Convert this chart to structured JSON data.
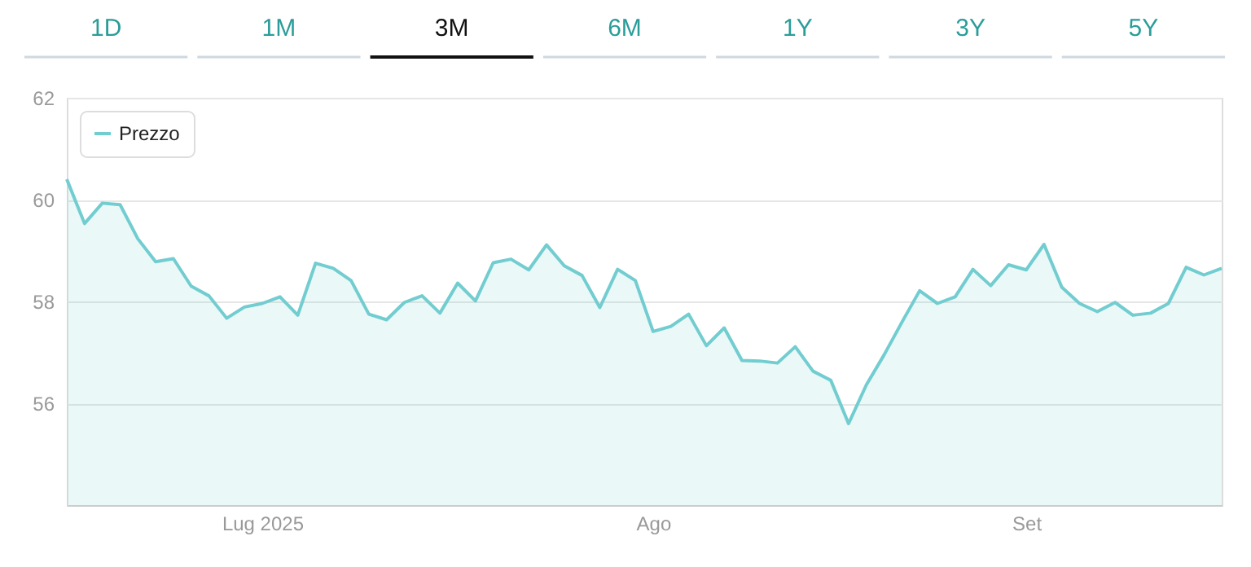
{
  "chart_data": {
    "type": "area",
    "annotations": [
      "1D",
      "1M",
      "3M",
      "6M",
      "1Y",
      "3Y",
      "5Y"
    ],
    "categories": [
      null,
      null,
      null,
      null,
      null,
      null,
      null,
      null,
      null,
      null,
      null,
      "Lug 2025",
      null,
      null,
      null,
      null,
      null,
      null,
      null,
      null,
      null,
      null,
      null,
      null,
      null,
      null,
      null,
      null,
      null,
      null,
      null,
      null,
      null,
      "Ago",
      null,
      null,
      null,
      null,
      null,
      null,
      null,
      null,
      null,
      null,
      null,
      null,
      null,
      null,
      null,
      null,
      null,
      null,
      null,
      null,
      "Set",
      null,
      null,
      null,
      null,
      null,
      null,
      null,
      null,
      null,
      null,
      null
    ],
    "series": [
      {
        "name": "Prezzo",
        "color": "#72cdd0",
        "values": [
          60.4,
          59.53,
          59.93,
          59.9,
          59.23,
          58.78,
          58.84,
          58.3,
          58.11,
          57.67,
          57.89,
          57.96,
          58.09,
          57.73,
          58.75,
          58.65,
          58.41,
          57.75,
          57.64,
          57.98,
          58.11,
          57.77,
          58.36,
          58.01,
          58.76,
          58.83,
          58.62,
          59.11,
          58.7,
          58.51,
          57.88,
          58.63,
          58.41,
          57.41,
          57.51,
          57.75,
          57.13,
          57.48,
          56.84,
          56.83,
          56.79,
          57.11,
          56.63,
          56.45,
          55.6,
          56.36,
          56.95,
          57.59,
          58.21,
          57.96,
          58.09,
          58.63,
          58.31,
          58.72,
          58.62,
          59.12,
          58.28,
          57.96,
          57.8,
          57.98,
          57.73,
          57.77,
          57.96,
          58.67,
          58.52,
          58.65
        ]
      }
    ],
    "ylim": [
      54,
      62
    ],
    "yticks": [
      56,
      58,
      60,
      62
    ],
    "grid": "y",
    "legend": "top left",
    "marker": "none",
    "line_style": "solid"
  }
}
